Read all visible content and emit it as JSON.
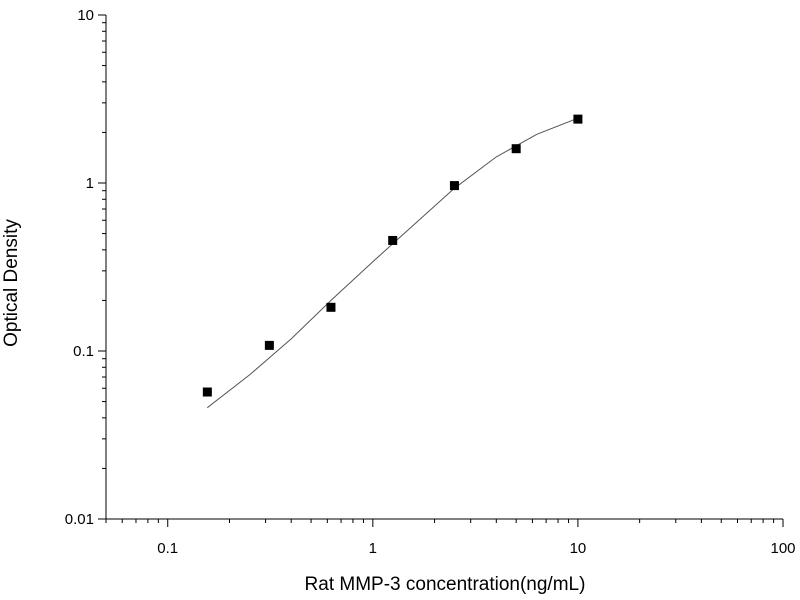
{
  "chart_data": {
    "type": "scatter",
    "title": "",
    "xlabel": "Rat MMP-3 concentration(ng/mL)",
    "ylabel": "Optical Density",
    "xscale": "log",
    "yscale": "log",
    "xlim": [
      0.05,
      100
    ],
    "ylim": [
      0.01,
      10
    ],
    "x_ticks": [
      {
        "value": 0.1,
        "label": "0.1"
      },
      {
        "value": 1,
        "label": "1"
      },
      {
        "value": 10,
        "label": "10"
      },
      {
        "value": 100,
        "label": "100"
      }
    ],
    "y_ticks": [
      {
        "value": 0.01,
        "label": "0.01"
      },
      {
        "value": 0.1,
        "label": "0.1"
      },
      {
        "value": 1,
        "label": "1"
      },
      {
        "value": 10,
        "label": "10"
      }
    ],
    "grid": false,
    "series": [
      {
        "marker": "square",
        "color": "#000000",
        "points": [
          {
            "x": 0.156,
            "y": 0.057
          },
          {
            "x": 0.313,
            "y": 0.108
          },
          {
            "x": 0.625,
            "y": 0.182
          },
          {
            "x": 1.25,
            "y": 0.455
          },
          {
            "x": 2.5,
            "y": 0.965
          },
          {
            "x": 5,
            "y": 1.6
          },
          {
            "x": 10,
            "y": 2.4
          }
        ]
      }
    ],
    "fit_curve": {
      "color": "#555555",
      "points": [
        {
          "x": 0.156,
          "y": 0.046
        },
        {
          "x": 0.25,
          "y": 0.072
        },
        {
          "x": 0.4,
          "y": 0.118
        },
        {
          "x": 0.625,
          "y": 0.2
        },
        {
          "x": 1,
          "y": 0.34
        },
        {
          "x": 1.6,
          "y": 0.57
        },
        {
          "x": 2.5,
          "y": 0.93
        },
        {
          "x": 4,
          "y": 1.43
        },
        {
          "x": 6.3,
          "y": 1.95
        },
        {
          "x": 10,
          "y": 2.43
        }
      ]
    }
  }
}
